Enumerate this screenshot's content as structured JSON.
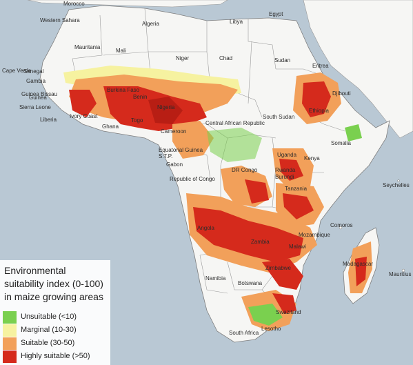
{
  "colors": {
    "ocean": "#b9c8d4",
    "land": "#f6f6f4",
    "border": "#9a9a9a",
    "unsuitable": "#7ad04f",
    "marginal": "#f6f2a0",
    "suitable": "#f2a05a",
    "highly_suitable": "#d52a1c"
  },
  "countries": {
    "morocco": "Morocco",
    "western_sahara": "Western Sahara",
    "algeria": "Algeria",
    "libya": "Libya",
    "egypt": "Egypt",
    "mauritania": "Mauritania",
    "mali": "Mali",
    "niger": "Niger",
    "chad": "Chad",
    "sudan": "Sudan",
    "eritrea": "Eritrea",
    "cape_verde": "Cape Verde",
    "senegal": "Senegal",
    "gambia": "Gambia",
    "guinea_bissau": "Guinea Bissau",
    "guinea": "Guinea",
    "sierra_leone": "Sierra Leone",
    "liberia": "Liberia",
    "ivory_coast": "Ivory Coast",
    "ghana": "Ghana",
    "burkina_faso": "Burkina Faso",
    "benin": "Benin",
    "togo": "Togo",
    "nigeria": "Nigeria",
    "djibouti": "Djibouti",
    "ethiopia": "Ethiopia",
    "south_sudan": "South Sudan",
    "central_african_republic": "Central African Republic",
    "cameroon": "Cameroon",
    "somalia": "Somalia",
    "equatorial_guinea": "Equatorial Guinea",
    "stp": "S.T.P.",
    "gabon": "Gabon",
    "uganda": "Uganda",
    "kenya": "Kenya",
    "dr_congo": "DR Congo",
    "rwanda": "Rwanda",
    "burundi": "Burundi",
    "republic_of_congo": "Republic of Congo",
    "tanzania": "Tanzania",
    "seychelles": "Seychelles",
    "angola": "Angola",
    "zambia": "Zambia",
    "malawi": "Malawi",
    "mozambique": "Mozambique",
    "comoros": "Comoros",
    "zimbabwe": "Zimbabwe",
    "namibia": "Namibia",
    "botswana": "Botswana",
    "madagascar": "Madagascar",
    "mauritius": "Mauritius",
    "swaziland": "Swaziland",
    "lesotho": "Lesotho",
    "south_africa": "South Africa"
  },
  "legend": {
    "title": "Environmental suitability index (0-100) in maize growing areas",
    "items": [
      {
        "label": "Unsuitable (<10)",
        "color": "#7ad04f"
      },
      {
        "label": "Marginal (10-30)",
        "color": "#f6f2a0"
      },
      {
        "label": "Suitable (30-50)",
        "color": "#f2a05a"
      },
      {
        "label": "Highly suitable (>50)",
        "color": "#d52a1c"
      }
    ]
  }
}
